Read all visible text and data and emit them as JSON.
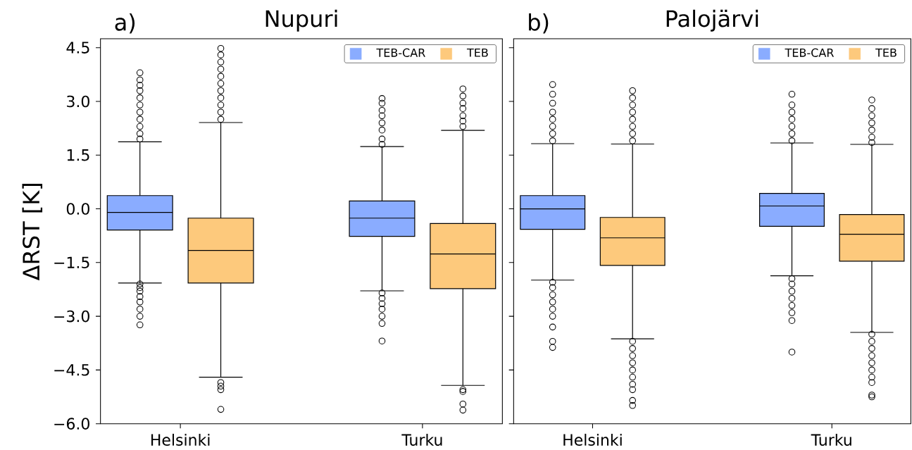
{
  "chart_data": [
    {
      "type": "box",
      "title": "Nupuri",
      "annotations": [
        "a)"
      ],
      "ylabel": "ΔRST [K]",
      "categories": [
        "Helsinki",
        "Turku"
      ],
      "ylim": [
        -6.0,
        4.75
      ],
      "yticks": [
        {
          "value": -6.0,
          "label": "−6.0"
        },
        {
          "value": -4.5,
          "label": "−4.5"
        },
        {
          "value": -3.0,
          "label": "−3.0"
        },
        {
          "value": -1.5,
          "label": "−1.5"
        },
        {
          "value": 0.0,
          "label": "0.0"
        },
        {
          "value": 1.5,
          "label": "1.5"
        },
        {
          "value": 3.0,
          "label": "3.0"
        },
        {
          "value": 4.5,
          "label": "4.5"
        }
      ],
      "legend": "top right",
      "grid": false,
      "marker": "circle",
      "series": [
        {
          "name": "TEB-CAR",
          "color": "#8aacff",
          "boxes": [
            {
              "low": -2.07,
              "q1": -0.59,
              "median": -0.1,
              "q3": 0.37,
              "high": 1.87,
              "outliers": [
                1.95,
                2.1,
                2.3,
                2.5,
                2.7,
                2.9,
                3.1,
                3.3,
                3.45,
                3.6,
                3.8,
                -2.1,
                -2.2,
                -2.3,
                -2.45,
                -2.6,
                -2.8,
                -3.0,
                -3.24
              ]
            },
            {
              "low": -2.29,
              "q1": -0.77,
              "median": -0.26,
              "q3": 0.22,
              "high": 1.74,
              "outliers": [
                1.8,
                1.95,
                2.2,
                2.4,
                2.6,
                2.75,
                2.95,
                3.08,
                -2.35,
                -2.5,
                -2.65,
                -2.8,
                -3.0,
                -3.2,
                -3.69
              ]
            }
          ]
        },
        {
          "name": "TEB",
          "color": "#fdc97c",
          "boxes": [
            {
              "low": -4.7,
              "q1": -2.07,
              "median": -1.16,
              "q3": -0.26,
              "high": 2.41,
              "outliers": [
                2.5,
                2.7,
                2.9,
                3.1,
                3.3,
                3.5,
                3.7,
                3.9,
                4.1,
                4.3,
                4.48,
                -4.85,
                -4.95,
                -5.05,
                -5.6
              ]
            },
            {
              "low": -4.93,
              "q1": -2.23,
              "median": -1.26,
              "q3": -0.41,
              "high": 2.19,
              "outliers": [
                2.3,
                2.45,
                2.6,
                2.8,
                2.95,
                3.15,
                3.35,
                -5.05,
                -5.1,
                -5.45,
                -5.62
              ]
            }
          ]
        }
      ]
    },
    {
      "type": "box",
      "title": "Palojärvi",
      "annotations": [
        "b)"
      ],
      "categories": [
        "Helsinki",
        "Turku"
      ],
      "ylim": [
        -6.0,
        4.75
      ],
      "yticks": [
        {
          "value": -6.0,
          "label": null
        },
        {
          "value": -4.5,
          "label": null
        },
        {
          "value": -3.0,
          "label": null
        },
        {
          "value": -1.5,
          "label": null
        },
        {
          "value": 0.0,
          "label": null
        },
        {
          "value": 1.5,
          "label": null
        },
        {
          "value": 3.0,
          "label": null
        },
        {
          "value": 4.5,
          "label": null
        }
      ],
      "tick_labels": "x",
      "legend": "top right",
      "grid": false,
      "marker": "circle",
      "series": [
        {
          "name": "TEB-CAR",
          "color": "#8aacff",
          "boxes": [
            {
              "low": -1.99,
              "q1": -0.57,
              "median": 0.0,
              "q3": 0.37,
              "high": 1.82,
              "outliers": [
                1.9,
                2.1,
                2.3,
                2.5,
                2.7,
                2.95,
                3.2,
                3.47,
                -2.05,
                -2.2,
                -2.4,
                -2.6,
                -2.8,
                -3.0,
                -3.3,
                -3.7,
                -3.87
              ]
            },
            {
              "low": -1.87,
              "q1": -0.49,
              "median": 0.08,
              "q3": 0.43,
              "high": 1.84,
              "outliers": [
                1.9,
                2.1,
                2.3,
                2.5,
                2.7,
                2.9,
                3.2,
                -1.95,
                -2.1,
                -2.3,
                -2.5,
                -2.7,
                -2.9,
                -3.12,
                -4.0
              ]
            }
          ]
        },
        {
          "name": "TEB",
          "color": "#fdc97c",
          "boxes": [
            {
              "low": -3.63,
              "q1": -1.58,
              "median": -0.81,
              "q3": -0.24,
              "high": 1.81,
              "outliers": [
                1.9,
                2.1,
                2.3,
                2.5,
                2.7,
                2.9,
                3.1,
                3.3,
                -3.7,
                -3.9,
                -4.1,
                -4.3,
                -4.5,
                -4.7,
                -4.9,
                -5.05,
                -5.35,
                -5.49
              ]
            },
            {
              "low": -3.45,
              "q1": -1.46,
              "median": -0.71,
              "q3": -0.16,
              "high": 1.8,
              "outliers": [
                1.85,
                2.0,
                2.2,
                2.4,
                2.6,
                2.8,
                3.04,
                -3.5,
                -3.7,
                -3.9,
                -4.1,
                -4.3,
                -4.5,
                -4.7,
                -4.85,
                -5.2,
                -5.25
              ]
            }
          ]
        }
      ]
    }
  ]
}
